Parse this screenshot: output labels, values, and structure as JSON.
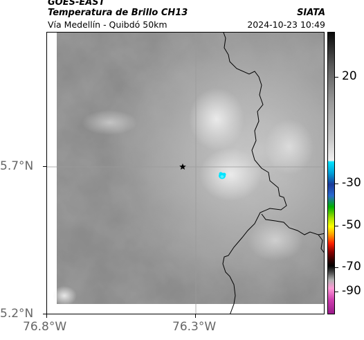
{
  "header": {
    "satellite": "GOES-EAST",
    "product": "Temperatura de Brillo CH13",
    "region": "Vía Medellín - Quibdó 50km",
    "agency": "SIATA",
    "timestamp": "2024-10-23 10:49"
  },
  "axes": {
    "lat_labels": [
      "5.7°N",
      "5.2°N"
    ],
    "lon_labels": [
      "76.8°W",
      "76.3°W"
    ]
  },
  "colorbar": {
    "tick_labels": [
      "20",
      "-30",
      "-50",
      "-70",
      "-90"
    ]
  },
  "markers": {
    "site_icon": "star-icon",
    "cell_color": "#00e4ff"
  },
  "colors": {
    "cloud_gray_dark": "#767676",
    "cloud_gray_light": "#dcdcdc",
    "border_line": "#000000",
    "grid_line": "#9a9a9a"
  }
}
